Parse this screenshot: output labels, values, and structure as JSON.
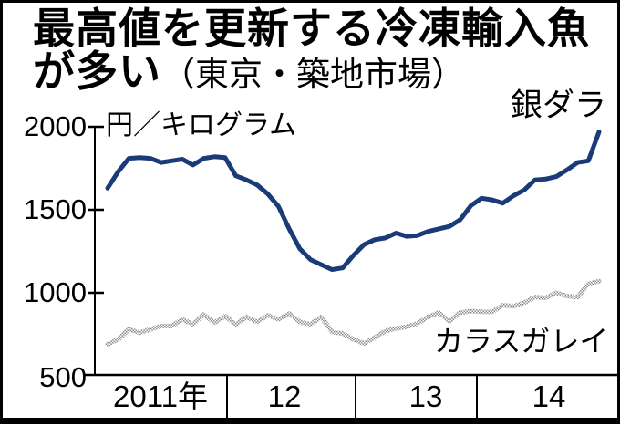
{
  "title": {
    "line1": "最高値を更新する冷凍輸入魚",
    "line2_main": "が多い",
    "line2_paren": "（東京・築地市場）"
  },
  "axes": {
    "unit_label": "円／キログラム",
    "y_ticks": [
      "2000",
      "1500",
      "1000",
      "500"
    ],
    "x_tick_labels": [
      "2011年",
      "12",
      "13",
      "14"
    ]
  },
  "series_labels": {
    "gindara": "銀ダラ",
    "karasugarei": "カラスガレイ"
  },
  "chart_data": {
    "type": "line",
    "title": "最高値を更新する冷凍輸入魚が多い（東京・築地市場）",
    "ylabel": "円／キログラム",
    "ylim": [
      500,
      2000
    ],
    "y_ticks": [
      2000,
      1500,
      1000,
      500
    ],
    "x_tick_labels": [
      "2011年",
      "12",
      "13",
      "14"
    ],
    "x_start": "2011-01",
    "x_step": "month",
    "grid": false,
    "legend_position": "inline-annotations",
    "series": [
      {
        "name": "銀ダラ",
        "color": "#1a3a78",
        "style": "solid",
        "values": [
          1630,
          1730,
          1810,
          1815,
          1810,
          1785,
          1795,
          1805,
          1770,
          1810,
          1820,
          1815,
          1705,
          1680,
          1650,
          1595,
          1520,
          1385,
          1265,
          1200,
          1170,
          1140,
          1150,
          1225,
          1290,
          1320,
          1330,
          1360,
          1340,
          1345,
          1370,
          1385,
          1400,
          1440,
          1525,
          1570,
          1560,
          1540,
          1585,
          1620,
          1680,
          1685,
          1700,
          1740,
          1785,
          1795,
          1970
        ]
      },
      {
        "name": "カラスガレイ",
        "color": "#8c8c8c",
        "style": "halftone",
        "values": [
          690,
          720,
          780,
          760,
          780,
          800,
          800,
          840,
          810,
          870,
          820,
          860,
          810,
          855,
          825,
          865,
          840,
          875,
          825,
          810,
          855,
          765,
          755,
          720,
          695,
          730,
          770,
          785,
          795,
          815,
          855,
          880,
          830,
          880,
          890,
          885,
          885,
          925,
          920,
          940,
          975,
          970,
          1000,
          980,
          975,
          1055,
          1070
        ]
      }
    ]
  }
}
